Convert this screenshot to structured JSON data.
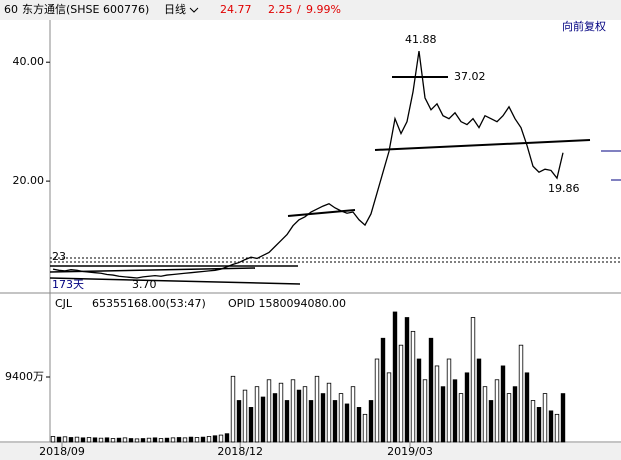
{
  "header": {
    "period": "60",
    "name": "东方通信(SHSE 600776)",
    "cycle": "日线",
    "price": "24.77",
    "change": "2.25",
    "change_pct": "9.99%",
    "adjust": "向前复权"
  },
  "chart_data": [
    {
      "type": "line",
      "color": "#000000",
      "series": [
        {
          "name": "close",
          "color": "#000000",
          "values": [
            5.2,
            5.0,
            4.9,
            5.1,
            5.0,
            4.8,
            4.7,
            4.6,
            4.5,
            4.3,
            4.2,
            4.0,
            3.9,
            3.8,
            3.7,
            3.9,
            4.0,
            4.1,
            4.0,
            4.2,
            4.3,
            4.4,
            4.5,
            4.6,
            4.7,
            4.8,
            4.9,
            5.0,
            5.2,
            5.6,
            6.0,
            6.3,
            6.8,
            7.2,
            7.0,
            7.5,
            8.0,
            9.0,
            10.0,
            11.0,
            12.5,
            13.5,
            14.0,
            14.8,
            15.3,
            15.8,
            16.2,
            15.5,
            15.0,
            14.6,
            14.8,
            13.5,
            12.6,
            14.5,
            18.0,
            21.5,
            25.0,
            30.5,
            28.0,
            30.0,
            35.0,
            41.88,
            34.0,
            32.0,
            33.0,
            31.0,
            30.5,
            31.5,
            30.0,
            29.5,
            30.5,
            29.0,
            31.0,
            30.5,
            30.0,
            31.0,
            32.5,
            30.5,
            29.0,
            26.0,
            22.5,
            21.5,
            22.0,
            21.8,
            20.5,
            24.77
          ]
        }
      ],
      "ylim": [
        1.35,
        47.1
      ],
      "yticks": [
        {
          "value": 20,
          "label": "20.00"
        },
        {
          "value": 40,
          "label": "40.00"
        }
      ],
      "xlim": [
        -0.5,
        85.5
      ],
      "xticks": [
        {
          "value": 1.5,
          "label": "2018/09"
        },
        {
          "value": 31.2,
          "label": "2018/12"
        },
        {
          "value": 59.5,
          "label": "2019/03"
        }
      ],
      "annotations": [
        "41.88",
        "37.02",
        "19.86",
        "3.70",
        "23",
        "173天"
      ]
    },
    {
      "type": "bar",
      "color": "#000000",
      "title": "CJL",
      "subtitle": "65355168.00(53:47)",
      "note": "OPID 1580094080.00",
      "series": [
        {
          "name": "CJL",
          "color": "#000000",
          "values": [
            800,
            700,
            750,
            650,
            700,
            600,
            650,
            600,
            550,
            600,
            500,
            550,
            600,
            500,
            450,
            500,
            550,
            600,
            500,
            550,
            600,
            650,
            600,
            700,
            650,
            700,
            800,
            900,
            1000,
            1200,
            9500,
            6000,
            7500,
            5000,
            8000,
            6500,
            9000,
            7000,
            8500,
            6000,
            9000,
            7500,
            8000,
            6000,
            9500,
            7000,
            8500,
            6000,
            7000,
            5500,
            8000,
            5000,
            4000,
            6000,
            12000,
            15000,
            10000,
            18800,
            14000,
            18000,
            16000,
            12000,
            9000,
            15000,
            11000,
            8000,
            12000,
            9000,
            7000,
            10000,
            18000,
            12000,
            8000,
            6000,
            9000,
            11000,
            7000,
            8000,
            14000,
            10000,
            6000,
            5000,
            7000,
            4500,
            4000,
            7000
          ]
        }
      ],
      "ylim": [
        0,
        21113
      ],
      "yticks": [
        {
          "value": 9400,
          "label": "9400万"
        }
      ],
      "xlim": [
        -0.5,
        85.5
      ]
    }
  ]
}
